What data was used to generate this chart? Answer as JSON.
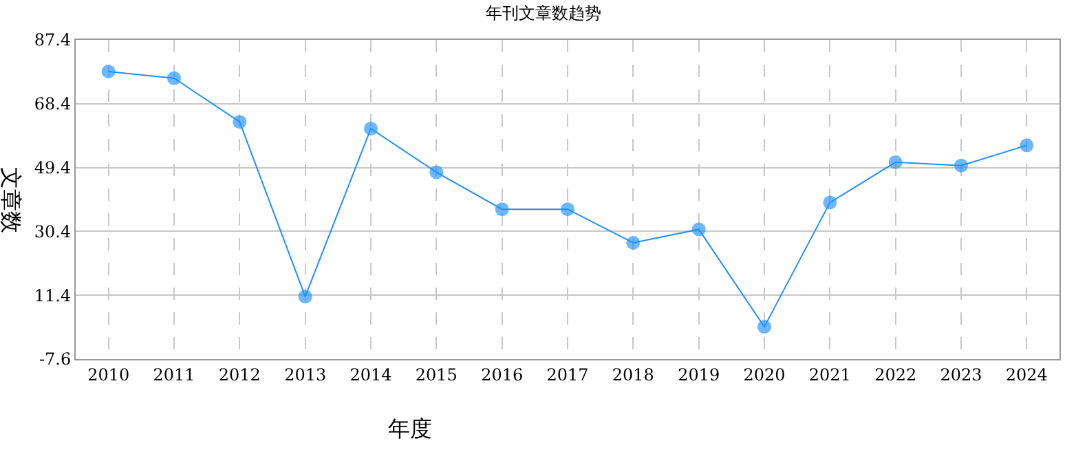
{
  "chart_data": {
    "type": "line",
    "title": "年刊文章数趋势",
    "xlabel": "年度",
    "ylabel": "文章数",
    "categories": [
      "2010",
      "2011",
      "2012",
      "2013",
      "2014",
      "2015",
      "2016",
      "2017",
      "2018",
      "2019",
      "2020",
      "2021",
      "2022",
      "2023",
      "2024"
    ],
    "series": [
      {
        "color": "#1e90ff",
        "values": [
          78,
          76,
          63,
          11,
          61,
          48,
          37,
          37,
          27,
          31,
          2,
          39,
          51,
          50,
          56
        ]
      }
    ],
    "ylim": [
      -7.6,
      87.4
    ],
    "yticks": [
      -7.6,
      11.4,
      30.4,
      49.4,
      68.4,
      87.4
    ],
    "grid": true,
    "marker": "circle",
    "line_style": "solid"
  }
}
